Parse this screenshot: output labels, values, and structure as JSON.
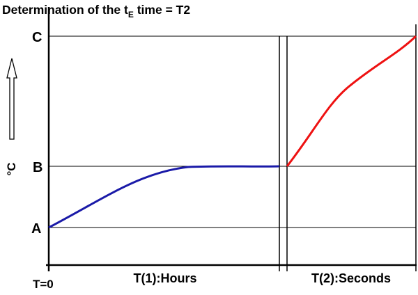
{
  "title": {
    "prefix": "Determination of the t",
    "subscript": "E",
    "suffix": " time = T2"
  },
  "y_axis": {
    "label": "°C",
    "levels": [
      {
        "id": "A",
        "label": "A"
      },
      {
        "id": "B",
        "label": "B"
      },
      {
        "id": "C",
        "label": "C"
      }
    ]
  },
  "x_axis": {
    "origin_label": "T=0",
    "segment1_label": "T(1):Hours",
    "segment2_label": "T(2):Seconds"
  },
  "curves": {
    "slow_heating": {
      "color": "#1a1aa8",
      "from_level": "A",
      "to_level": "B"
    },
    "fast_heating": {
      "color": "#ee1111",
      "from_level": "B",
      "to_level": "C"
    }
  }
}
